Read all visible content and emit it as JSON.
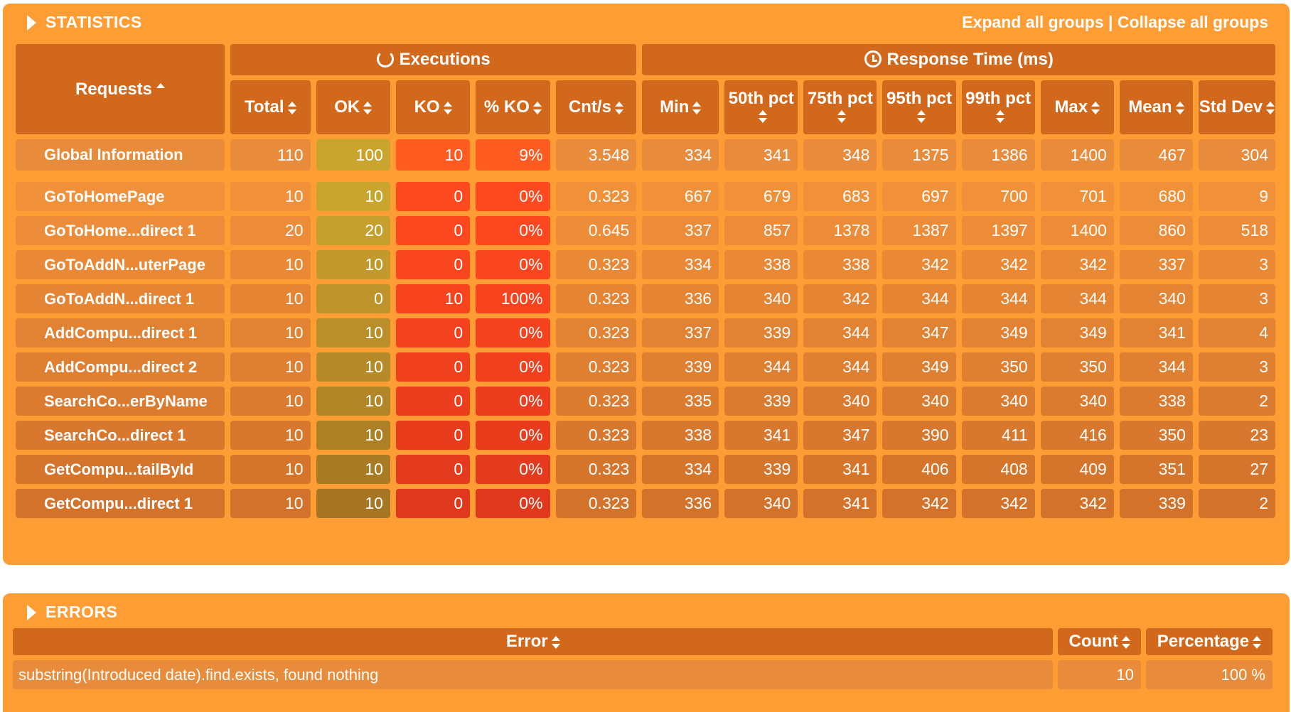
{
  "statistics": {
    "title": "STATISTICS",
    "expand_all": "Expand all groups",
    "separator": " | ",
    "collapse_all": "Collapse all groups",
    "group_executions": "Executions",
    "group_response": "Response Time (ms)",
    "requests_header": "Requests",
    "columns": [
      "Total",
      "OK",
      "KO",
      "% KO",
      "Cnt/s",
      "Min",
      "50th pct",
      "75th pct",
      "95th pct",
      "99th pct",
      "Max",
      "Mean",
      "Std Dev"
    ],
    "global": {
      "name": "Global Information",
      "values": [
        "110",
        "100",
        "10",
        "9%",
        "3.548",
        "334",
        "341",
        "348",
        "1375",
        "1386",
        "1400",
        "467",
        "304"
      ]
    },
    "rows": [
      {
        "name": "GoToHomePage",
        "values": [
          "10",
          "10",
          "0",
          "0%",
          "0.323",
          "667",
          "679",
          "683",
          "697",
          "700",
          "701",
          "680",
          "9"
        ]
      },
      {
        "name": "GoToHome...direct 1",
        "values": [
          "20",
          "20",
          "0",
          "0%",
          "0.645",
          "337",
          "857",
          "1378",
          "1387",
          "1397",
          "1400",
          "860",
          "518"
        ]
      },
      {
        "name": "GoToAddN...uterPage",
        "values": [
          "10",
          "10",
          "0",
          "0%",
          "0.323",
          "334",
          "338",
          "338",
          "342",
          "342",
          "342",
          "337",
          "3"
        ]
      },
      {
        "name": "GoToAddN...direct 1",
        "values": [
          "10",
          "0",
          "10",
          "100%",
          "0.323",
          "336",
          "340",
          "342",
          "344",
          "344",
          "344",
          "340",
          "3"
        ]
      },
      {
        "name": "AddCompu...direct 1",
        "values": [
          "10",
          "10",
          "0",
          "0%",
          "0.323",
          "337",
          "339",
          "344",
          "347",
          "349",
          "349",
          "341",
          "4"
        ]
      },
      {
        "name": "AddCompu...direct 2",
        "values": [
          "10",
          "10",
          "0",
          "0%",
          "0.323",
          "339",
          "344",
          "344",
          "349",
          "350",
          "350",
          "344",
          "3"
        ]
      },
      {
        "name": "SearchCo...erByName",
        "values": [
          "10",
          "10",
          "0",
          "0%",
          "0.323",
          "335",
          "339",
          "340",
          "340",
          "340",
          "340",
          "338",
          "2"
        ]
      },
      {
        "name": "SearchCo...direct 1",
        "values": [
          "10",
          "10",
          "0",
          "0%",
          "0.323",
          "338",
          "341",
          "347",
          "390",
          "411",
          "416",
          "350",
          "23"
        ]
      },
      {
        "name": "GetCompu...tailById",
        "values": [
          "10",
          "10",
          "0",
          "0%",
          "0.323",
          "334",
          "339",
          "341",
          "406",
          "408",
          "409",
          "351",
          "27"
        ]
      },
      {
        "name": "GetCompu...direct 1",
        "values": [
          "10",
          "10",
          "0",
          "0%",
          "0.323",
          "336",
          "340",
          "341",
          "342",
          "342",
          "342",
          "339",
          "2"
        ]
      }
    ]
  },
  "errors": {
    "title": "ERRORS",
    "columns": [
      "Error",
      "Count",
      "Percentage"
    ],
    "rows": [
      {
        "error": "substring(Introduced date).find.exists, found nothing",
        "count": "10",
        "percentage": "100 %"
      }
    ]
  },
  "colors": {
    "panel": "#fd9d34",
    "header": "#d2681b",
    "ok": "#c9a52d",
    "ko": "#ff5a1f",
    "ko_pct": "#ff4a25"
  }
}
